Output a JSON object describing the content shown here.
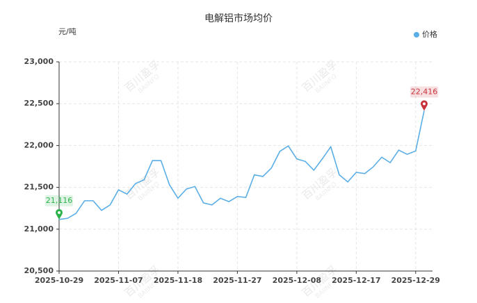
{
  "chart_data": {
    "type": "line",
    "title": "电解铝市场均价",
    "y_label": "元/吨",
    "watermark": "百川盈孚",
    "watermark_sub": "BAIINFO",
    "categories": [
      "2025-10-29",
      null,
      null,
      null,
      null,
      null,
      null,
      "2025-11-07",
      null,
      null,
      null,
      null,
      null,
      null,
      "2025-11-18",
      null,
      null,
      null,
      null,
      null,
      null,
      "2025-11-27",
      null,
      null,
      null,
      null,
      null,
      null,
      "2025-12-08",
      null,
      null,
      null,
      null,
      null,
      null,
      "2025-12-17",
      null,
      null,
      null,
      null,
      null,
      null,
      "2025-12-29",
      null
    ],
    "series": [
      {
        "name": "价格",
        "color": "#5aaee6",
        "values": [
          21116,
          21130,
          21190,
          21340,
          21340,
          21225,
          21290,
          21470,
          21420,
          21545,
          21590,
          21820,
          21820,
          21530,
          21370,
          21480,
          21510,
          21315,
          21290,
          21370,
          21330,
          21390,
          21380,
          21650,
          21630,
          21730,
          21930,
          21995,
          21840,
          21810,
          21705,
          21840,
          21985,
          21650,
          21565,
          21680,
          21665,
          21745,
          21860,
          21795,
          21945,
          21895,
          21935,
          22416
        ],
        "value_labels": [
          "21,116",
          null,
          null,
          null,
          null,
          null,
          null,
          null,
          null,
          null,
          null,
          null,
          null,
          null,
          null,
          null,
          null,
          null,
          null,
          null,
          null,
          null,
          null,
          null,
          null,
          null,
          null,
          null,
          null,
          null,
          null,
          null,
          null,
          null,
          null,
          null,
          null,
          null,
          null,
          null,
          null,
          null,
          null,
          "22,416"
        ]
      }
    ],
    "min_color": "#2ab34a",
    "max_color": "#c8323a",
    "ylim": [
      20500,
      23000
    ],
    "yticks": [
      {
        "value": 20500,
        "label": "20,500"
      },
      {
        "value": 21000,
        "label": "21,000"
      },
      {
        "value": 21500,
        "label": "21,500"
      },
      {
        "value": 22000,
        "label": "22,000"
      },
      {
        "value": 22500,
        "label": "22,500"
      },
      {
        "value": 23000,
        "label": "23,000"
      }
    ],
    "grid": true,
    "legend": "top-right"
  }
}
